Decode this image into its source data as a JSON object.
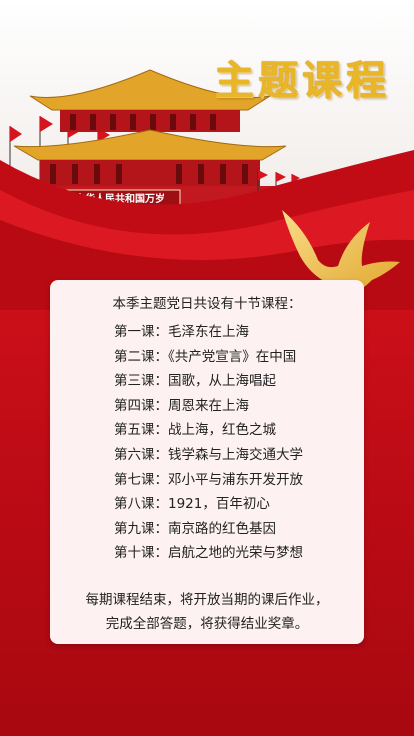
{
  "header": {
    "title": "主题课程",
    "gate_banner_text": "中华人民共和国万岁"
  },
  "card": {
    "intro": "本季主题党日共设有十节课程：",
    "lessons": [
      "第一课：毛泽东在上海",
      "第二课：《共产党宣言》在中国",
      "第三课：国歌，从上海唱起",
      "第四课：周恩来在上海",
      "第五课：战上海，红色之城",
      "第六课：钱学森与上海交通大学",
      "第七课：邓小平与浦东开发开放",
      "第八课：1921，百年初心",
      "第九课：南京路的红色基因",
      "第十课：启航之地的光荣与梦想"
    ],
    "note_line1": "每期课程结束，将开放当期的课后作业，",
    "note_line2": "完成全部答题，将获得结业奖章。"
  },
  "colors": {
    "primary_red": "#c10c16",
    "gold": "#e9b627",
    "card_bg": "#fdf1f1"
  },
  "icons": [
    "tiananmen-gate-illustration",
    "red-flag-icon",
    "dove-icon"
  ]
}
